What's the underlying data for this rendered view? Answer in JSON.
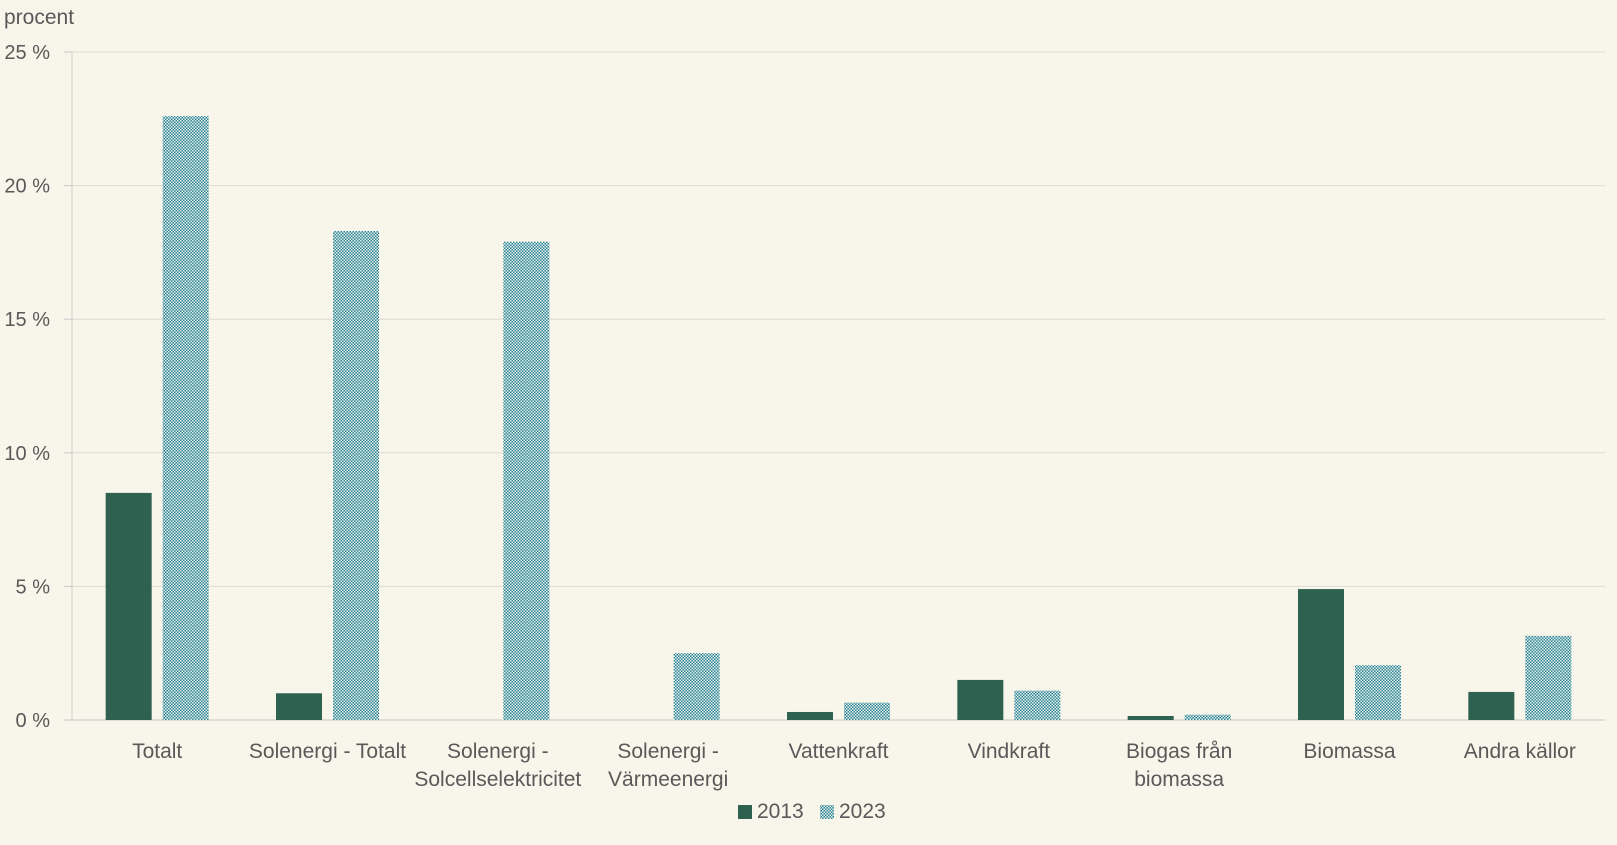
{
  "chart_data": {
    "type": "bar",
    "ylabel": "procent",
    "ylim": [
      0,
      25
    ],
    "yticks": [
      {
        "value": 0,
        "label": "0 %"
      },
      {
        "value": 5,
        "label": "5 %"
      },
      {
        "value": 10,
        "label": "10 %"
      },
      {
        "value": 15,
        "label": "15 %"
      },
      {
        "value": 20,
        "label": "20 %"
      },
      {
        "value": 25,
        "label": "25 %"
      }
    ],
    "categories": [
      [
        "Totalt"
      ],
      [
        "Solenergi - Totalt"
      ],
      [
        "Solenergi -",
        "Solcellselektricitet"
      ],
      [
        "Solenergi -",
        "Värmeenergi"
      ],
      [
        "Vattenkraft"
      ],
      [
        "Vindkraft"
      ],
      [
        "Biogas från",
        "biomassa"
      ],
      [
        "Biomassa"
      ],
      [
        "Andra källor"
      ]
    ],
    "series": [
      {
        "name": "2013",
        "color": "#2e6150",
        "pattern": "solid",
        "values": [
          8.5,
          1.0,
          0.0,
          0.0,
          0.3,
          1.5,
          0.15,
          4.9,
          1.05
        ]
      },
      {
        "name": "2023",
        "color": "#2a8494",
        "pattern": "checker",
        "values": [
          22.6,
          18.3,
          17.9,
          2.5,
          0.65,
          1.1,
          0.2,
          2.05,
          3.15
        ]
      }
    ],
    "grid": true,
    "legend": "bottom-center"
  }
}
